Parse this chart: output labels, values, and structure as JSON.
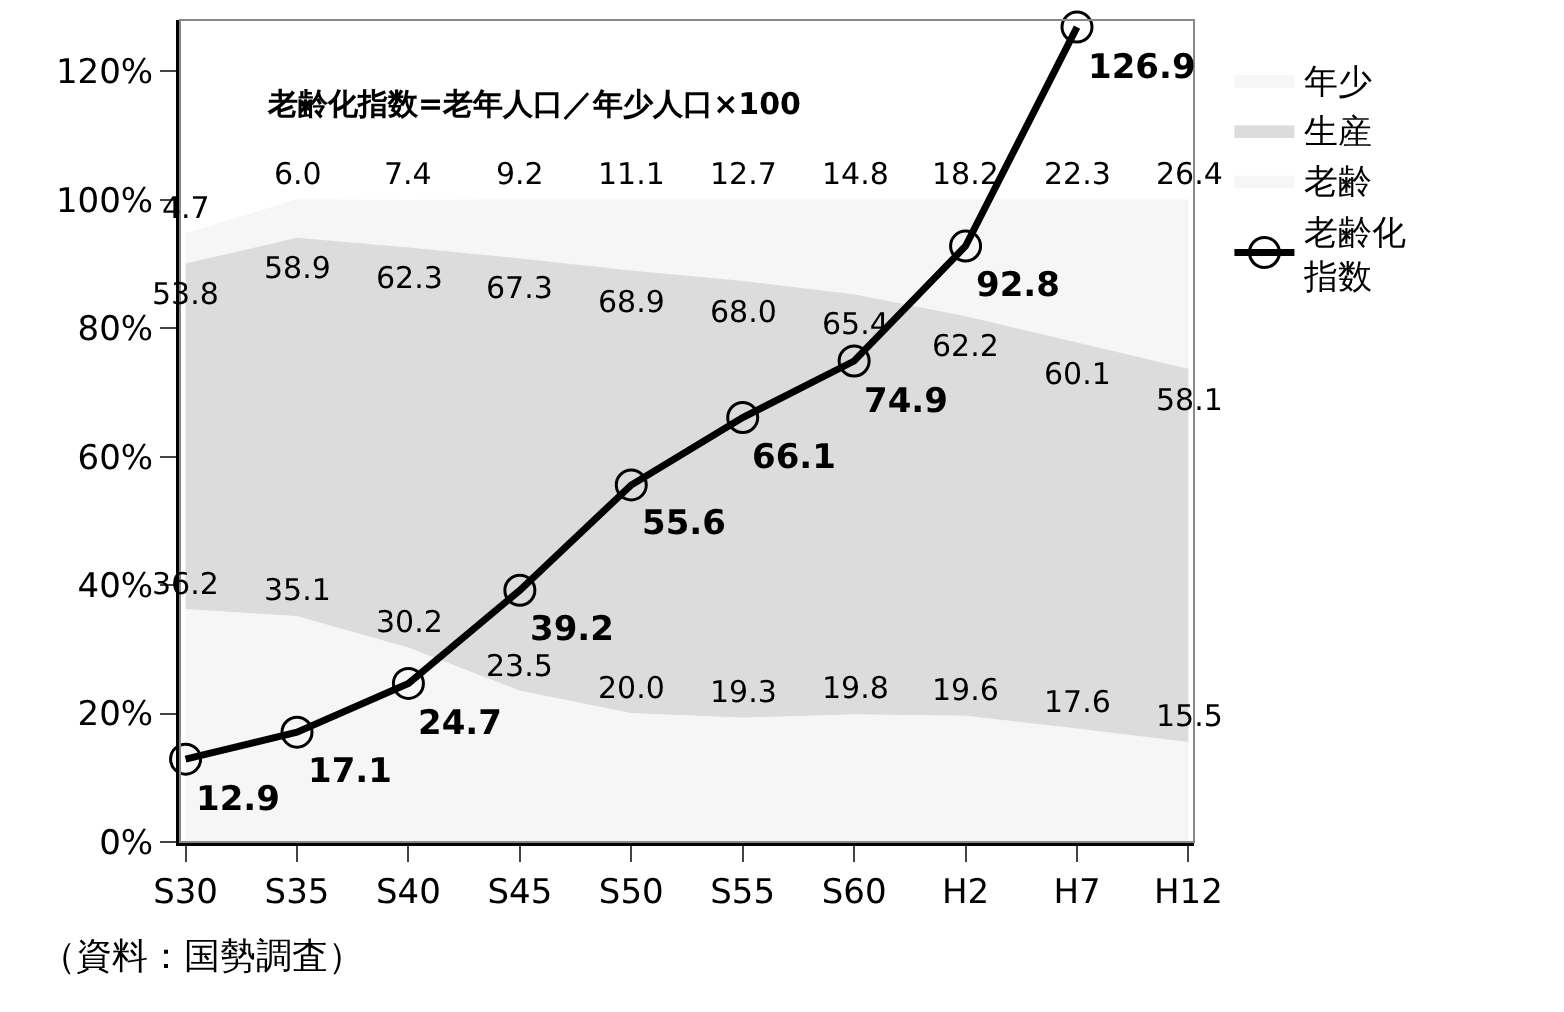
{
  "chart_data": {
    "type": "area",
    "stacked": true,
    "categories": [
      "S30",
      "S35",
      "S40",
      "S45",
      "S50",
      "S55",
      "S60",
      "H2",
      "H7",
      "H12"
    ],
    "series": [
      {
        "name": "年少",
        "color": "#f6f6f6",
        "values": [
          36.2,
          35.1,
          30.2,
          23.5,
          20.0,
          19.3,
          19.8,
          19.6,
          17.6,
          15.5
        ],
        "value_labels": [
          "36.2",
          "35.1",
          "30.2",
          "23.5",
          "20.0",
          "19.3",
          "19.8",
          "19.6",
          "17.6",
          "15.5"
        ]
      },
      {
        "name": "生産",
        "color": "#dcdcdc",
        "values": [
          53.8,
          58.9,
          62.3,
          67.3,
          68.9,
          68.0,
          65.4,
          62.2,
          60.1,
          58.1
        ],
        "value_labels": [
          "53.8",
          "58.9",
          "62.3",
          "67.3",
          "68.9",
          "68.0",
          "65.4",
          "62.2",
          "60.1",
          "58.1"
        ]
      },
      {
        "name": "老齢",
        "color": "#f6f6f6",
        "values": [
          4.7,
          6.0,
          7.4,
          9.2,
          11.1,
          12.7,
          14.8,
          18.2,
          22.3,
          26.4
        ],
        "value_labels": [
          "4.7",
          "6.0",
          "7.4",
          "9.2",
          "11.1",
          "12.7",
          "14.8",
          "18.2",
          "22.3",
          "26.4"
        ]
      },
      {
        "name": "老齢化指数",
        "type": "line",
        "marker": "circle",
        "color": "#000000",
        "values": [
          12.9,
          17.1,
          24.7,
          39.2,
          55.6,
          66.1,
          74.9,
          92.8,
          126.9,
          null
        ],
        "value_labels": [
          "12.9",
          "17.1",
          "24.7",
          "39.2",
          "55.6",
          "66.1",
          "74.9",
          "92.8",
          "126.9",
          null
        ]
      }
    ],
    "ylim": [
      0,
      128
    ],
    "yticks": [
      {
        "value": 0,
        "label": "0%"
      },
      {
        "value": 20,
        "label": "20%"
      },
      {
        "value": 40,
        "label": "40%"
      },
      {
        "value": 60,
        "label": "60%"
      },
      {
        "value": 80,
        "label": "80%"
      },
      {
        "value": 100,
        "label": "100%"
      },
      {
        "value": 120,
        "label": "120%"
      }
    ],
    "legend": "right",
    "annotations": [
      "老齢化指数=老年人口／年少人口×100",
      "（資料：国勢調査）"
    ]
  }
}
